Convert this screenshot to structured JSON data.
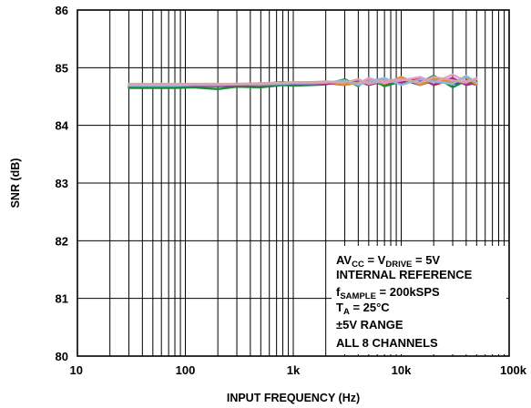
{
  "chart_data": {
    "type": "line",
    "title": "",
    "xlabel": "INPUT FREQUENCY (Hz)",
    "ylabel": "SNR (dB)",
    "x_scale": "log",
    "xlim": [
      10,
      100000
    ],
    "ylim": [
      80,
      86
    ],
    "x_ticks": [
      10,
      100,
      1000,
      10000,
      100000
    ],
    "x_tick_labels": [
      "10",
      "100",
      "1k",
      "10k",
      "100k"
    ],
    "y_ticks": [
      80,
      81,
      82,
      83,
      84,
      85,
      86
    ],
    "y_tick_labels": [
      "80",
      "81",
      "82",
      "83",
      "84",
      "85",
      "86"
    ],
    "grid": true,
    "legend": "none",
    "x": [
      30,
      50,
      80,
      120,
      200,
      300,
      500,
      800,
      1000,
      1500,
      2000,
      3000,
      4000,
      5000,
      7000,
      10000,
      15000,
      20000,
      30000,
      40000,
      50000
    ],
    "series": [
      {
        "color": "#1f3fbf",
        "values": [
          84.67,
          84.67,
          84.67,
          84.68,
          84.68,
          84.69,
          84.7,
          84.72,
          84.71,
          84.72,
          84.73,
          84.75,
          84.72,
          84.78,
          84.7,
          84.8,
          84.7,
          84.78,
          84.72,
          84.76,
          84.7
        ]
      },
      {
        "color": "#d81b1b",
        "values": [
          84.69,
          84.69,
          84.69,
          84.7,
          84.7,
          84.71,
          84.72,
          84.75,
          84.73,
          84.73,
          84.74,
          84.7,
          84.79,
          84.71,
          84.8,
          84.72,
          84.82,
          84.7,
          84.8,
          84.72,
          84.76
        ]
      },
      {
        "color": "#1e8a3a",
        "values": [
          84.65,
          84.65,
          84.65,
          84.66,
          84.63,
          84.67,
          84.66,
          84.7,
          84.69,
          84.7,
          84.71,
          84.8,
          84.68,
          84.82,
          84.68,
          84.76,
          84.74,
          84.86,
          84.66,
          84.78,
          84.72
        ]
      },
      {
        "color": "#a0328c",
        "values": [
          84.68,
          84.68,
          84.68,
          84.68,
          84.69,
          84.7,
          84.7,
          84.71,
          84.72,
          84.72,
          84.72,
          84.74,
          84.76,
          84.7,
          84.77,
          84.74,
          84.78,
          84.72,
          84.82,
          84.7,
          84.74
        ]
      },
      {
        "color": "#e58c2a",
        "values": [
          84.7,
          84.7,
          84.7,
          84.7,
          84.71,
          84.71,
          84.73,
          84.73,
          84.74,
          84.74,
          84.76,
          84.7,
          84.74,
          84.8,
          84.72,
          84.84,
          84.7,
          84.8,
          84.74,
          84.84,
          84.7
        ]
      },
      {
        "color": "#e79bd1",
        "values": [
          84.71,
          84.71,
          84.71,
          84.71,
          84.71,
          84.72,
          84.72,
          84.74,
          84.74,
          84.75,
          84.75,
          84.76,
          84.72,
          84.82,
          84.74,
          84.78,
          84.84,
          84.74,
          84.88,
          84.76,
          84.8
        ]
      },
      {
        "color": "#8fb8e0",
        "values": [
          84.69,
          84.69,
          84.69,
          84.7,
          84.7,
          84.71,
          84.71,
          84.72,
          84.73,
          84.73,
          84.74,
          84.78,
          84.7,
          84.76,
          84.82,
          84.7,
          84.8,
          84.76,
          84.72,
          84.86,
          84.74
        ]
      },
      {
        "color": "#d7a6a6",
        "values": [
          84.72,
          84.72,
          84.72,
          84.72,
          84.72,
          84.72,
          84.73,
          84.74,
          84.75,
          84.75,
          84.76,
          84.74,
          84.8,
          84.72,
          84.78,
          84.8,
          84.74,
          84.84,
          84.78,
          84.74,
          84.82
        ]
      }
    ]
  },
  "annotation": {
    "line1": {
      "a": "AV",
      "a_sub": "CC",
      "b": " = V",
      "b_sub": "DRIVE",
      "c": " = 5V"
    },
    "line2": "INTERNAL REFERENCE",
    "line3": {
      "a": "f",
      "a_sub": "SAMPLE",
      "b": " = 200kSPS"
    },
    "line4": {
      "a": "T",
      "a_sub": "A",
      "b": " = 25°C"
    },
    "line5": "±5V RANGE",
    "line6": "ALL 8 CHANNELS"
  }
}
